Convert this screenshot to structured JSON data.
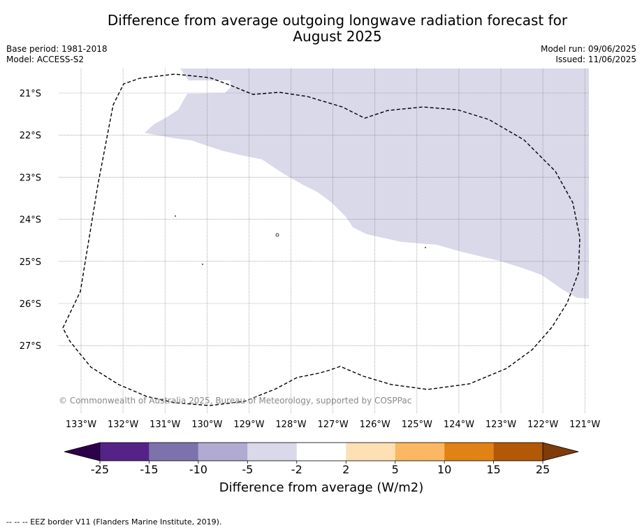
{
  "header": {
    "title_line1": "Difference from average outgoing longwave radiation forecast for",
    "title_line2": "August 2025",
    "base_period": "Base period: 1981-2018",
    "model": "Model: ACCESS-S2",
    "model_run": "Model run: 09/06/2025",
    "issued": "Issued: 11/06/2025"
  },
  "map": {
    "lat_labels": [
      "21°S",
      "22°S",
      "23°S",
      "24°S",
      "25°S",
      "26°S",
      "27°S"
    ],
    "lon_labels": [
      "133°W",
      "132°W",
      "131°W",
      "130°W",
      "129°W",
      "128°W",
      "127°W",
      "126°W",
      "125°W",
      "124°W",
      "123°W",
      "122°W",
      "121°W"
    ],
    "anomaly_region_category": "-5 to -2",
    "anomaly_region_color": "#d9d9ea",
    "copyright": "© Commonwealth of Australia 2025, Bureau of Meteorology, supported by COSPPac"
  },
  "colorbar": {
    "tick_labels": [
      "-25",
      "-15",
      "-10",
      "-5",
      "-2",
      "2",
      "5",
      "10",
      "15",
      "25"
    ],
    "colors": [
      "#552388",
      "#7e72ad",
      "#b1abd2",
      "#d9d9ea",
      "#ffffff",
      "#fee0b5",
      "#fcb762",
      "#e08214",
      "#b35807"
    ],
    "under_color": "#2d004b",
    "over_color": "#7f3b08",
    "label": "Difference from average (W/m2)"
  },
  "footnote": "--  --  -- EEZ border V11 (Flanders Marine Institute, 2019)."
}
